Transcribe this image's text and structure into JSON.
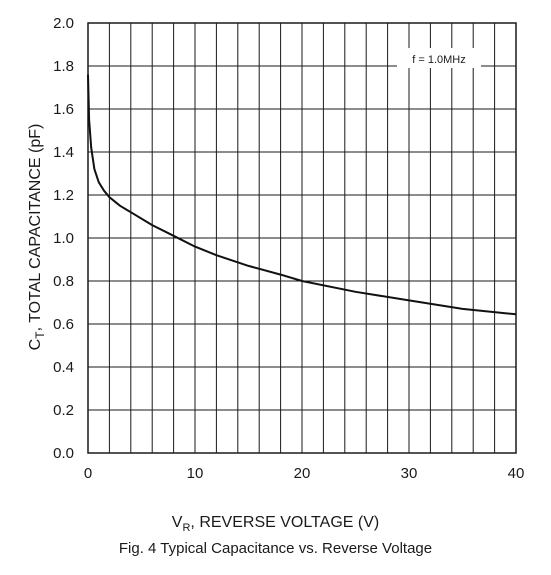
{
  "chart_data": {
    "type": "line",
    "title": "",
    "caption": "Fig. 4 Typical Capacitance vs. Reverse Voltage",
    "xlabel": {
      "prefix": "V",
      "sub": "R",
      "rest": ", REVERSE VOLTAGE (V)"
    },
    "ylabel": {
      "prefix": "C",
      "sub": "T",
      "rest": ", TOTAL CAPACITANCE (pF)"
    },
    "xlim": [
      0,
      40
    ],
    "ylim": [
      0,
      2.0
    ],
    "x_ticks": [
      "0",
      "10",
      "20",
      "30",
      "40"
    ],
    "y_ticks": [
      "0.0",
      "0.2",
      "0.4",
      "0.6",
      "0.8",
      "1.0",
      "1.2",
      "1.4",
      "1.6",
      "1.8",
      "2.0"
    ],
    "grid": true,
    "annotation": "f = 1.0MHz",
    "series": [
      {
        "x": [
          0,
          0.1,
          0.3,
          0.6,
          1,
          1.5,
          2,
          3,
          4,
          6,
          8,
          10,
          12,
          15,
          18,
          20,
          25,
          30,
          35,
          40
        ],
        "y": [
          1.76,
          1.55,
          1.42,
          1.32,
          1.26,
          1.22,
          1.19,
          1.15,
          1.12,
          1.06,
          1.01,
          0.96,
          0.92,
          0.87,
          0.83,
          0.8,
          0.75,
          0.71,
          0.67,
          0.645
        ]
      }
    ]
  }
}
